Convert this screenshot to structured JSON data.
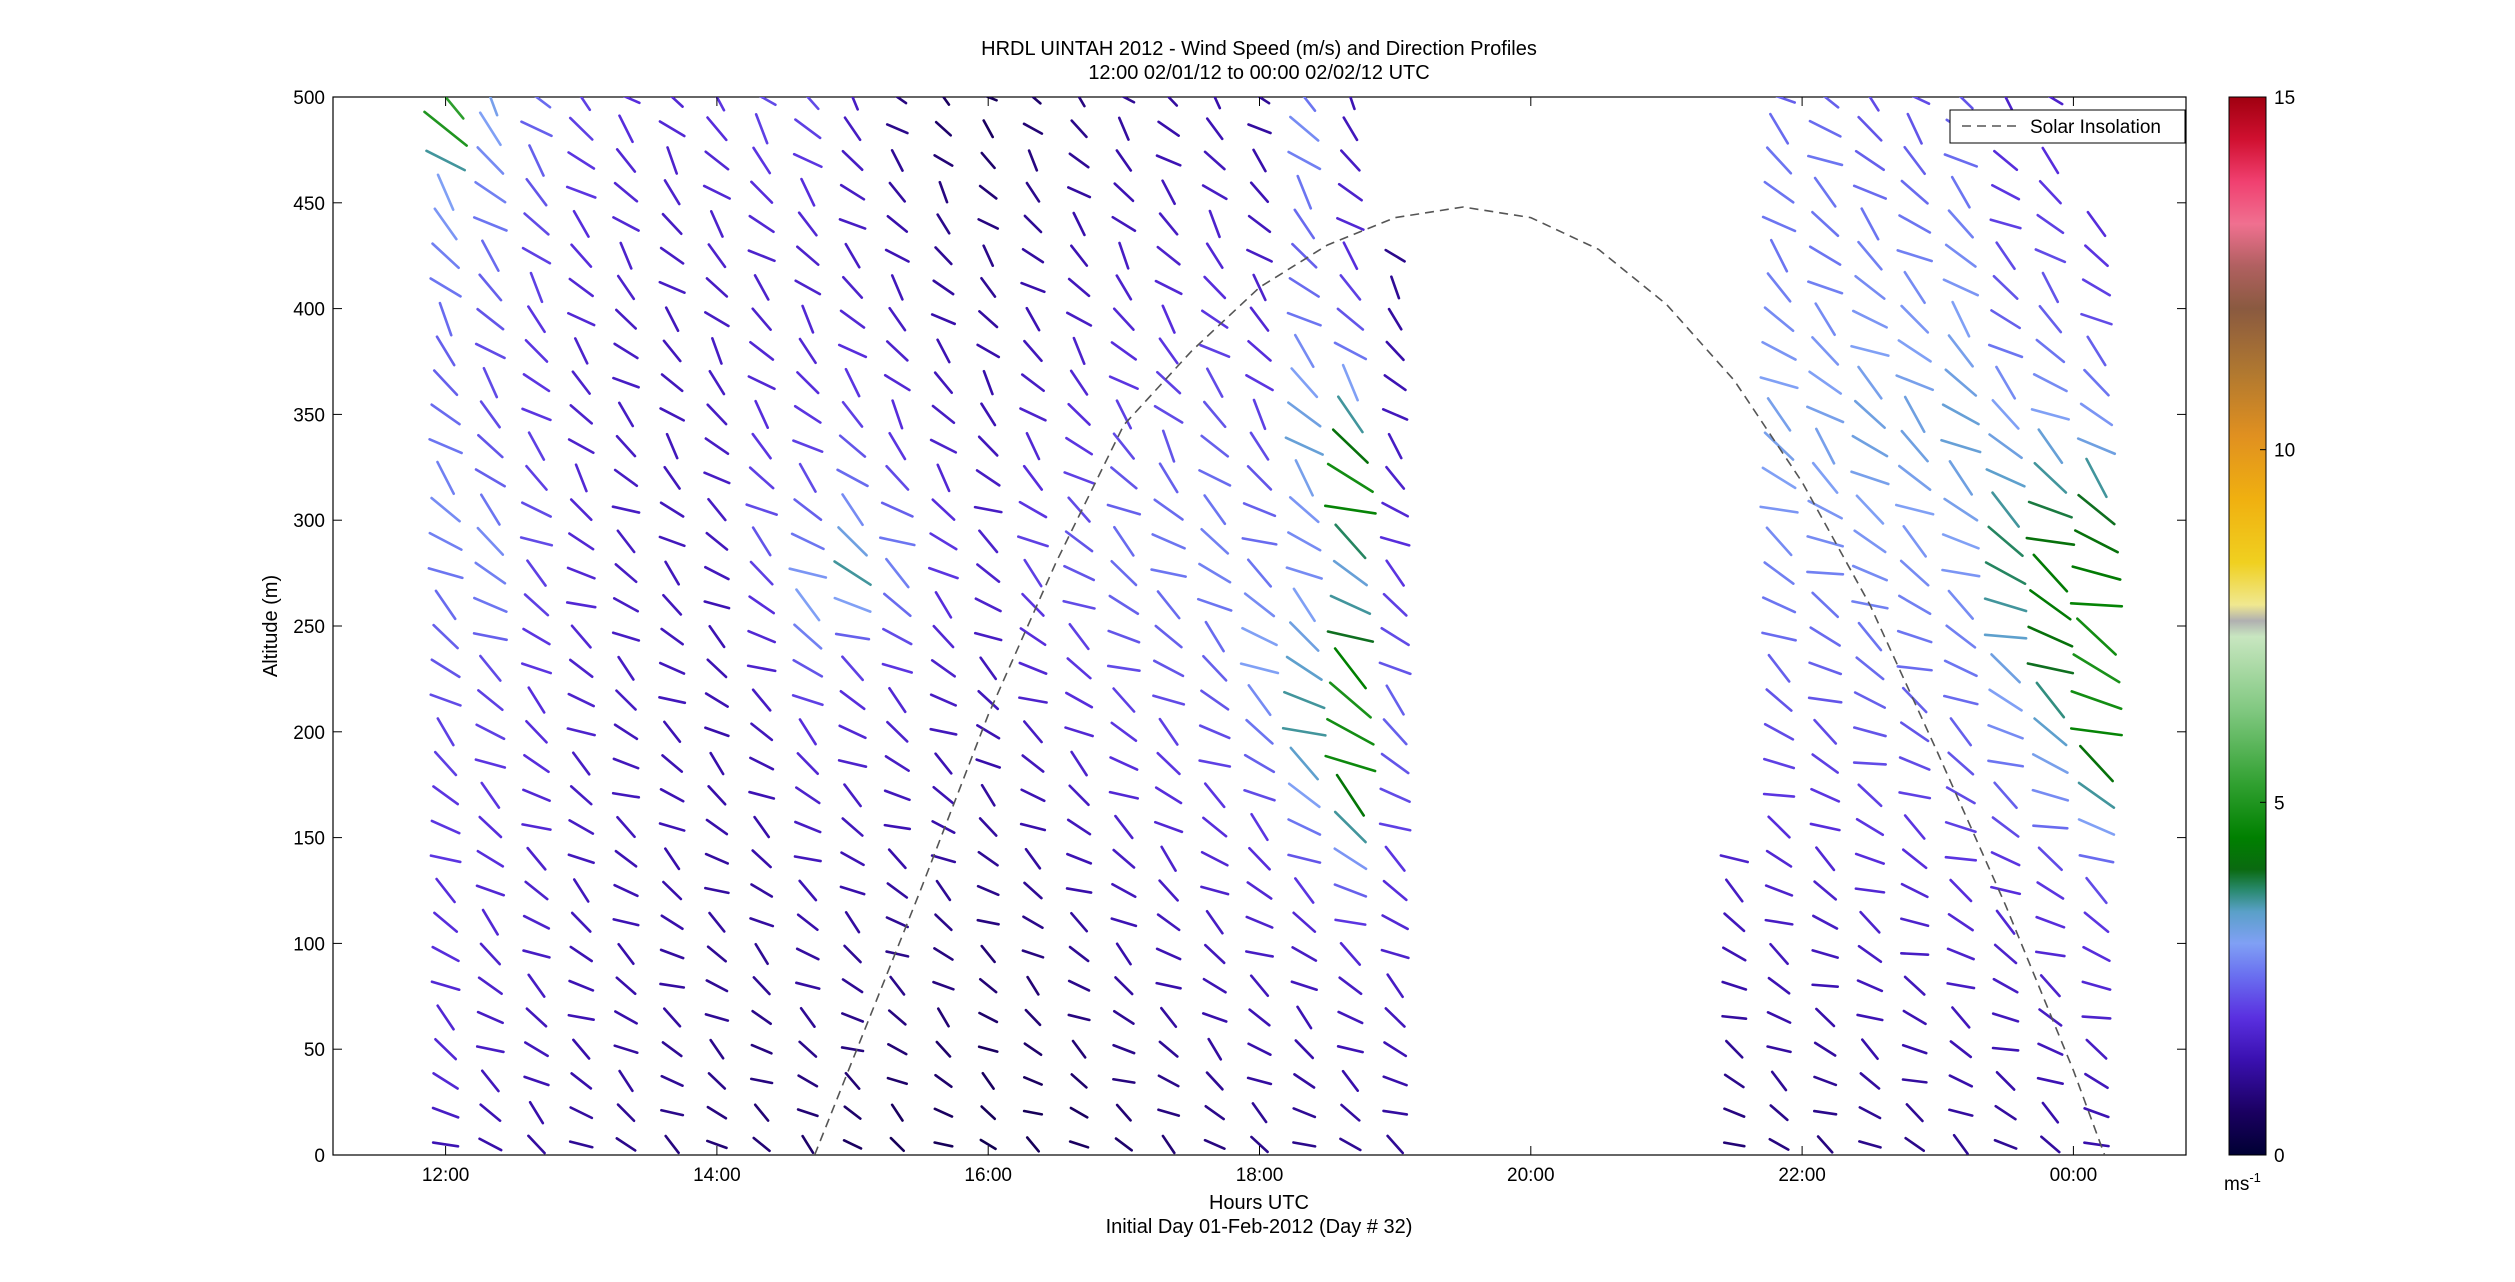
{
  "chart_data": {
    "type": "quiver",
    "title": "HRDL UINTAH 2012 - Wind Speed (m/s) and Direction Profiles",
    "subtitle": "12:00 02/01/12 to 00:00 02/02/12  UTC",
    "xlabel": "Hours UTC",
    "xlabel2": "Initial Day 01-Feb-2012 (Day # 32)",
    "ylabel": "Altitude (m)",
    "x_ticks": [
      "12:00",
      "14:00",
      "16:00",
      "18:00",
      "20:00",
      "22:00",
      "00:00"
    ],
    "y_ticks": [
      "0",
      "50",
      "100",
      "150",
      "200",
      "250",
      "300",
      "350",
      "400",
      "450",
      "500"
    ],
    "xlim_hours": [
      11.17,
      24.83
    ],
    "ylim": [
      0,
      500
    ],
    "colorbar": {
      "ticks": [
        "0",
        "5",
        "10",
        "15"
      ],
      "range": [
        0,
        15
      ],
      "unit_label": "ms",
      "unit_exponent": "-1"
    },
    "legend": {
      "entries": [
        "Solar Insolation"
      ],
      "placement": "top-right"
    },
    "solar_insolation": {
      "x_hours": [
        14.72,
        15.5,
        16.0,
        16.5,
        17.0,
        17.5,
        18.0,
        18.5,
        19.0,
        19.5,
        20.0,
        20.5,
        21.0,
        21.5,
        22.0,
        22.5,
        23.0,
        23.5,
        24.0,
        24.23
      ],
      "y": [
        0,
        125,
        208,
        280,
        345,
        380,
        410,
        430,
        443,
        448,
        443,
        428,
        402,
        366,
        318,
        260,
        190,
        118,
        40,
        0
      ]
    },
    "profile_times_hours": [
      12.0,
      12.33,
      12.67,
      13.0,
      13.33,
      13.67,
      14.0,
      14.33,
      14.67,
      15.0,
      15.33,
      15.67,
      16.0,
      16.33,
      16.67,
      17.0,
      17.33,
      17.67,
      18.0,
      18.33,
      18.67,
      19.0,
      21.5,
      21.83,
      22.17,
      22.5,
      22.83,
      23.17,
      23.5,
      23.83,
      24.17
    ],
    "profile_max_altitude_m": [
      500,
      500,
      500,
      500,
      500,
      500,
      500,
      500,
      500,
      500,
      500,
      500,
      500,
      500,
      500,
      500,
      500,
      500,
      500,
      500,
      500,
      420,
      140,
      500,
      500,
      500,
      500,
      500,
      500,
      500,
      440
    ],
    "altitudes_m": [
      0,
      15,
      30,
      45,
      60,
      75,
      90,
      105,
      120,
      135,
      150,
      165,
      180,
      195,
      210,
      225,
      240,
      255,
      270,
      285,
      300,
      315,
      330,
      345,
      360,
      375,
      390,
      405,
      420,
      435,
      450,
      465,
      480,
      495
    ],
    "wind_speed_profiles_ms": [
      [
        1.4,
        1.6,
        1.8,
        1.8,
        1.8,
        1.8,
        1.9,
        1.9,
        1.9,
        2.0,
        2.0,
        2.0,
        2.1,
        2.1,
        2.2,
        2.3,
        2.4,
        2.5,
        2.6,
        2.7,
        2.8,
        2.7,
        2.6,
        2.5,
        2.4,
        2.4,
        2.5,
        2.6,
        2.7,
        2.9,
        3.0,
        3.6,
        5.0,
        5.2
      ],
      [
        1.3,
        1.4,
        1.5,
        1.6,
        1.6,
        1.7,
        1.7,
        1.8,
        1.8,
        1.9,
        1.9,
        2.0,
        2.0,
        2.1,
        2.1,
        2.2,
        2.4,
        2.6,
        2.7,
        2.8,
        2.6,
        2.4,
        2.3,
        2.2,
        2.2,
        2.2,
        2.3,
        2.4,
        2.5,
        2.6,
        2.7,
        2.8,
        3.0,
        3.1
      ],
      [
        1.2,
        1.3,
        1.4,
        1.5,
        1.5,
        1.6,
        1.6,
        1.7,
        1.7,
        1.7,
        1.8,
        1.8,
        1.9,
        1.9,
        1.9,
        2.0,
        2.0,
        2.1,
        2.1,
        2.2,
        2.2,
        2.1,
        2.1,
        2.0,
        2.0,
        2.0,
        2.0,
        2.1,
        2.1,
        2.2,
        2.3,
        2.4,
        2.4,
        2.5
      ],
      [
        1.1,
        1.2,
        1.3,
        1.3,
        1.4,
        1.4,
        1.4,
        1.5,
        1.5,
        1.5,
        1.6,
        1.6,
        1.6,
        1.7,
        1.7,
        1.7,
        1.8,
        1.8,
        1.8,
        1.8,
        1.8,
        1.8,
        1.7,
        1.7,
        1.7,
        1.7,
        1.8,
        1.8,
        1.9,
        1.9,
        2.0,
        2.0,
        2.1,
        2.1
      ],
      [
        1.0,
        1.1,
        1.2,
        1.2,
        1.3,
        1.3,
        1.3,
        1.4,
        1.4,
        1.4,
        1.5,
        1.5,
        1.5,
        1.5,
        1.6,
        1.6,
        1.6,
        1.6,
        1.6,
        1.6,
        1.6,
        1.6,
        1.6,
        1.6,
        1.6,
        1.6,
        1.6,
        1.7,
        1.7,
        1.8,
        1.8,
        1.8,
        1.9,
        1.9
      ],
      [
        0.9,
        1.0,
        1.1,
        1.1,
        1.2,
        1.2,
        1.2,
        1.3,
        1.3,
        1.3,
        1.4,
        1.4,
        1.4,
        1.4,
        1.5,
        1.5,
        1.5,
        1.5,
        1.5,
        1.5,
        1.5,
        1.5,
        1.5,
        1.5,
        1.5,
        1.5,
        1.5,
        1.6,
        1.6,
        1.6,
        1.7,
        1.7,
        1.8,
        1.8
      ],
      [
        0.8,
        0.9,
        1.0,
        1.0,
        1.1,
        1.1,
        1.1,
        1.2,
        1.2,
        1.2,
        1.3,
        1.3,
        1.3,
        1.3,
        1.4,
        1.4,
        1.4,
        1.4,
        1.5,
        1.5,
        1.6,
        1.6,
        1.6,
        1.6,
        1.6,
        1.6,
        1.6,
        1.6,
        1.7,
        1.7,
        1.8,
        1.8,
        1.9,
        2.0
      ],
      [
        0.8,
        0.8,
        0.9,
        0.9,
        1.0,
        1.1,
        1.1,
        1.2,
        1.2,
        1.3,
        1.3,
        1.4,
        1.4,
        1.5,
        1.6,
        1.7,
        1.8,
        1.9,
        2.1,
        2.3,
        2.2,
        2.1,
        2.0,
        1.9,
        1.8,
        1.8,
        1.7,
        1.7,
        1.7,
        1.8,
        1.9,
        2.0,
        2.1,
        2.2
      ],
      [
        0.7,
        0.8,
        0.9,
        1.0,
        1.1,
        1.2,
        1.2,
        1.3,
        1.4,
        1.5,
        1.6,
        1.7,
        1.8,
        1.9,
        2.1,
        2.3,
        2.7,
        3.0,
        2.9,
        2.6,
        2.4,
        2.2,
        2.1,
        2.0,
        1.9,
        1.8,
        1.8,
        1.7,
        1.7,
        1.8,
        1.9,
        2.0,
        2.1,
        2.2
      ],
      [
        0.6,
        0.7,
        0.8,
        0.9,
        1.0,
        1.1,
        1.1,
        1.2,
        1.3,
        1.4,
        1.5,
        1.6,
        1.7,
        1.8,
        1.9,
        2.1,
        2.4,
        3.0,
        3.6,
        3.2,
        2.8,
        2.5,
        2.3,
        2.1,
        2.0,
        1.9,
        1.8,
        1.7,
        1.6,
        1.6,
        1.6,
        1.6,
        1.6,
        1.6
      ],
      [
        0.5,
        0.6,
        0.7,
        0.8,
        0.9,
        1.0,
        1.0,
        1.1,
        1.2,
        1.3,
        1.4,
        1.5,
        1.6,
        1.7,
        1.8,
        2.0,
        2.2,
        2.5,
        2.7,
        2.6,
        2.4,
        2.2,
        2.0,
        1.9,
        1.8,
        1.7,
        1.6,
        1.5,
        1.4,
        1.3,
        1.2,
        1.1,
        1.0,
        0.9
      ],
      [
        0.5,
        0.6,
        0.7,
        0.7,
        0.8,
        0.9,
        0.9,
        1.0,
        1.1,
        1.2,
        1.3,
        1.4,
        1.4,
        1.5,
        1.6,
        1.7,
        1.8,
        1.9,
        2.0,
        2.0,
        1.9,
        1.8,
        1.7,
        1.6,
        1.5,
        1.4,
        1.3,
        1.2,
        1.1,
        1.0,
        0.9,
        0.8,
        0.7,
        0.6
      ],
      [
        0.4,
        0.5,
        0.6,
        0.6,
        0.7,
        0.8,
        0.8,
        0.9,
        1.0,
        1.1,
        1.2,
        1.2,
        1.3,
        1.4,
        1.5,
        1.5,
        1.6,
        1.7,
        1.7,
        1.7,
        1.6,
        1.6,
        1.5,
        1.4,
        1.3,
        1.3,
        1.2,
        1.1,
        1.0,
        0.9,
        0.8,
        0.7,
        0.6,
        0.5
      ],
      [
        0.5,
        0.5,
        0.6,
        0.7,
        0.8,
        0.8,
        0.9,
        1.0,
        1.1,
        1.2,
        1.3,
        1.4,
        1.5,
        1.6,
        1.7,
        1.8,
        1.9,
        2.0,
        2.1,
        2.1,
        2.0,
        1.9,
        1.8,
        1.7,
        1.6,
        1.5,
        1.4,
        1.3,
        1.2,
        1.1,
        1.0,
        0.9,
        0.8,
        0.7
      ],
      [
        0.6,
        0.6,
        0.7,
        0.8,
        0.9,
        1.0,
        1.1,
        1.2,
        1.3,
        1.4,
        1.5,
        1.6,
        1.7,
        1.8,
        1.9,
        2.0,
        2.1,
        2.2,
        2.3,
        2.3,
        2.2,
        2.1,
        2.0,
        1.9,
        1.8,
        1.7,
        1.6,
        1.5,
        1.4,
        1.3,
        1.2,
        1.1,
        1.0,
        0.9
      ],
      [
        0.7,
        0.8,
        0.9,
        1.0,
        1.1,
        1.2,
        1.3,
        1.4,
        1.5,
        1.6,
        1.7,
        1.8,
        1.9,
        2.0,
        2.1,
        2.2,
        2.3,
        2.4,
        2.5,
        2.5,
        2.4,
        2.3,
        2.2,
        2.1,
        2.0,
        1.9,
        1.8,
        1.7,
        1.6,
        1.5,
        1.4,
        1.3,
        1.2,
        1.1
      ],
      [
        0.8,
        0.9,
        1.0,
        1.1,
        1.2,
        1.3,
        1.4,
        1.5,
        1.6,
        1.7,
        1.8,
        1.9,
        2.0,
        2.1,
        2.2,
        2.3,
        2.4,
        2.5,
        2.6,
        2.6,
        2.5,
        2.4,
        2.3,
        2.2,
        2.1,
        2.0,
        1.9,
        1.8,
        1.7,
        1.6,
        1.5,
        1.4,
        1.3,
        1.2
      ],
      [
        0.9,
        1.0,
        1.1,
        1.2,
        1.3,
        1.4,
        1.5,
        1.6,
        1.7,
        1.8,
        1.9,
        2.0,
        2.1,
        2.2,
        2.3,
        2.4,
        2.5,
        2.6,
        2.7,
        2.7,
        2.6,
        2.5,
        2.4,
        2.3,
        2.2,
        2.1,
        2.0,
        1.9,
        1.8,
        1.7,
        1.6,
        1.5,
        1.4,
        1.3
      ],
      [
        1.0,
        1.1,
        1.2,
        1.3,
        1.4,
        1.5,
        1.6,
        1.7,
        1.8,
        1.9,
        2.0,
        2.2,
        2.4,
        2.6,
        2.8,
        3.0,
        3.0,
        2.8,
        2.6,
        2.5,
        2.4,
        2.3,
        2.2,
        2.1,
        2.0,
        1.9,
        1.8,
        1.7,
        1.6,
        1.5,
        1.4,
        1.3,
        1.2,
        1.1
      ],
      [
        1.0,
        1.1,
        1.2,
        1.3,
        1.4,
        1.5,
        1.6,
        1.8,
        2.0,
        2.3,
        2.6,
        3.0,
        3.4,
        3.6,
        3.6,
        3.4,
        3.2,
        3.0,
        2.8,
        2.8,
        2.9,
        3.1,
        3.3,
        3.2,
        3.0,
        2.8,
        2.6,
        2.5,
        2.4,
        2.5,
        2.6,
        2.7,
        2.8,
        2.6
      ],
      [
        1.1,
        1.2,
        1.3,
        1.4,
        1.5,
        1.6,
        1.8,
        2.0,
        2.4,
        2.9,
        3.6,
        4.3,
        4.7,
        4.8,
        4.9,
        4.5,
        4.0,
        3.6,
        3.3,
        3.8,
        4.6,
        4.8,
        4.2,
        3.6,
        3.0,
        2.6,
        2.3,
        2.1,
        1.9,
        1.8,
        1.7,
        1.6,
        1.5,
        1.4
      ],
      [
        1.1,
        1.2,
        1.3,
        1.4,
        1.5,
        1.6,
        1.7,
        1.8,
        1.9,
        2.0,
        2.1,
        2.2,
        2.3,
        2.4,
        2.4,
        2.3,
        2.2,
        2.1,
        2.0,
        1.9,
        1.8,
        1.7,
        1.6,
        1.5,
        1.4,
        1.3,
        1.2,
        1.1,
        1.0
      ],
      [
        0.8,
        0.9,
        1.0,
        1.1,
        1.2,
        1.3,
        1.4,
        1.5,
        1.6,
        1.7
      ],
      [
        0.9,
        1.0,
        1.1,
        1.2,
        1.3,
        1.4,
        1.5,
        1.6,
        1.7,
        1.8,
        1.9,
        2.0,
        2.1,
        2.2,
        2.3,
        2.4,
        2.5,
        2.6,
        2.7,
        2.8,
        2.9,
        3.0,
        3.1,
        3.1,
        3.0,
        2.9,
        2.8,
        2.7,
        2.6,
        2.6,
        2.6,
        2.6,
        2.5,
        2.4
      ],
      [
        0.9,
        1.0,
        1.1,
        1.2,
        1.3,
        1.4,
        1.5,
        1.6,
        1.7,
        1.8,
        1.9,
        2.0,
        2.1,
        2.2,
        2.3,
        2.4,
        2.5,
        2.6,
        2.7,
        2.8,
        2.9,
        3.0,
        3.1,
        3.1,
        3.0,
        2.9,
        2.8,
        2.7,
        2.6,
        2.6,
        2.6,
        2.6,
        2.5,
        2.4
      ],
      [
        1.0,
        1.1,
        1.2,
        1.3,
        1.4,
        1.5,
        1.6,
        1.7,
        1.8,
        1.9,
        2.0,
        2.1,
        2.2,
        2.3,
        2.4,
        2.5,
        2.6,
        2.7,
        2.8,
        2.9,
        3.0,
        3.1,
        3.2,
        3.2,
        3.1,
        3.0,
        2.9,
        2.8,
        2.7,
        2.6,
        2.5,
        2.4,
        2.3,
        2.2
      ],
      [
        1.0,
        1.1,
        1.2,
        1.3,
        1.4,
        1.5,
        1.6,
        1.7,
        1.8,
        1.9,
        2.0,
        2.1,
        2.2,
        2.3,
        2.4,
        2.5,
        2.6,
        2.7,
        2.8,
        2.9,
        3.0,
        3.1,
        3.2,
        3.2,
        3.1,
        3.0,
        2.9,
        2.8,
        2.7,
        2.6,
        2.5,
        2.4,
        2.3,
        2.2
      ],
      [
        1.1,
        1.2,
        1.3,
        1.4,
        1.5,
        1.6,
        1.7,
        1.8,
        1.9,
        2.0,
        2.1,
        2.2,
        2.3,
        2.4,
        2.5,
        2.6,
        2.7,
        2.8,
        2.9,
        3.0,
        3.1,
        3.2,
        3.3,
        3.3,
        3.2,
        3.1,
        3.0,
        2.9,
        2.8,
        2.7,
        2.6,
        2.5,
        2.4,
        2.3
      ],
      [
        1.1,
        1.2,
        1.3,
        1.4,
        1.5,
        1.6,
        1.7,
        1.8,
        1.9,
        2.0,
        2.2,
        2.4,
        2.6,
        2.8,
        3.0,
        3.2,
        3.4,
        3.6,
        3.8,
        3.8,
        3.6,
        3.4,
        3.2,
        3.0,
        2.8,
        2.6,
        2.4,
        2.3,
        2.2,
        2.1,
        2.0,
        1.9,
        1.8,
        1.7
      ],
      [
        1.2,
        1.3,
        1.4,
        1.5,
        1.6,
        1.7,
        1.8,
        1.9,
        2.0,
        2.2,
        2.5,
        2.8,
        3.1,
        3.4,
        3.7,
        4.0,
        4.2,
        4.4,
        4.4,
        4.2,
        3.9,
        3.6,
        3.3,
        3.0,
        2.8,
        2.6,
        2.4,
        2.3,
        2.2,
        2.1,
        2.0,
        1.9,
        1.8,
        1.7
      ],
      [
        1.3,
        1.4,
        1.5,
        1.6,
        1.7,
        1.8,
        1.9,
        2.0,
        2.2,
        2.5,
        3.0,
        3.6,
        4.2,
        4.6,
        4.8,
        4.9,
        4.8,
        4.6,
        4.4,
        4.2,
        4.0,
        3.6,
        3.2,
        2.9,
        2.6,
        2.4,
        2.2,
        2.1,
        2.0,
        1.9
      ]
    ]
  }
}
